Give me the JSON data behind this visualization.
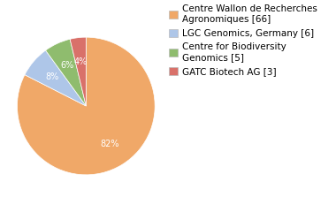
{
  "labels": [
    "Centre Wallon de Recherches\nAgronomiques [66]",
    "LGC Genomics, Germany [6]",
    "Centre for Biodiversity\nGenomics [5]",
    "GATC Biotech AG [3]"
  ],
  "values": [
    66,
    6,
    5,
    3
  ],
  "colors": [
    "#f0a868",
    "#aec6e8",
    "#8fbc6e",
    "#d9716a"
  ],
  "background_color": "#ffffff",
  "label_fontsize": 7.5,
  "pct_fontsize": 7
}
